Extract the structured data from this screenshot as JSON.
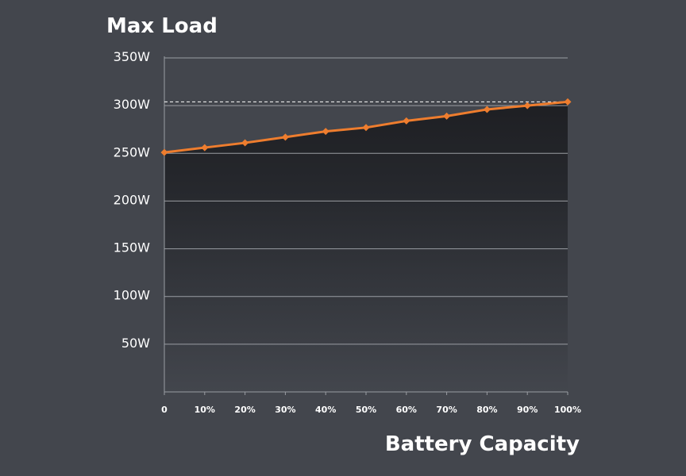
{
  "chart_data": {
    "type": "area",
    "title": "Max Load",
    "xlabel": "Battery Capacity",
    "ylabel": "",
    "x": [
      0,
      10,
      20,
      30,
      40,
      50,
      60,
      70,
      80,
      90,
      100
    ],
    "x_tick_labels": [
      "0",
      "10%",
      "20%",
      "30%",
      "40%",
      "50%",
      "60%",
      "70%",
      "80%",
      "90%",
      "100%"
    ],
    "y_tick_values": [
      50,
      100,
      150,
      200,
      250,
      300,
      350
    ],
    "y_tick_labels": [
      "50W",
      "100W",
      "150W",
      "200W",
      "250W",
      "300W",
      "350W"
    ],
    "xlim": [
      0,
      100
    ],
    "ylim": [
      0,
      350
    ],
    "grid": true,
    "reference_line": 304,
    "series": [
      {
        "values": [
          251,
          256,
          261,
          267,
          273,
          277,
          284,
          289,
          296,
          300,
          304
        ]
      }
    ],
    "colors": {
      "background": "#43464d",
      "line": "#ee7d2e",
      "grid": "#9a9da3",
      "axis": "#9a9da3",
      "reference": "#ffffff",
      "fill_top": "#1e1f23",
      "fill_bottom": "#43464d"
    }
  }
}
